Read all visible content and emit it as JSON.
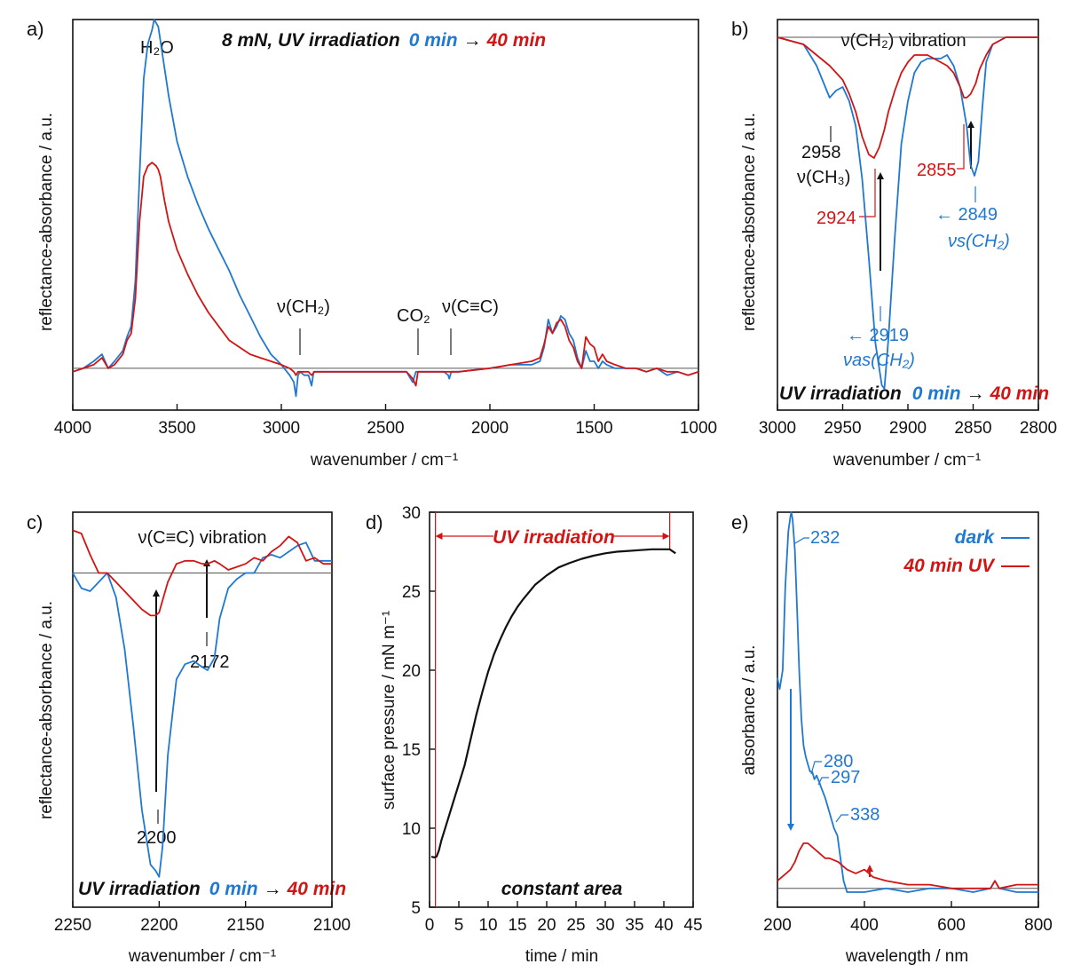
{
  "colors": {
    "blue": "#1f78d1",
    "red": "#d21414",
    "black": "#111111"
  },
  "panels": {
    "a": {
      "label": "a)",
      "xlabel": "wavenumber / cm⁻¹",
      "ylabel": "reflectance-absorbance / a.u.",
      "title_prefix": "8 mN, UV irradiation",
      "t0": "0 min",
      "arrow": "→",
      "t1": "40 min",
      "annotations": {
        "h2o": "H₂O",
        "ch2": "ν(CH₂)",
        "co2": "CO₂",
        "cc": "ν(C≡C)"
      }
    },
    "b": {
      "label": "b)",
      "xlabel": "wavenumber / cm⁻¹",
      "ylabel": "reflectance-absorbance / a.u.",
      "title": "ν(CH₂) vibration",
      "uv_text": "UV irradiation",
      "t0": "0 min",
      "arrow": "→",
      "t1": "40 min",
      "peaks": {
        "p2958": "2958",
        "ch3": "ν(CH₃)",
        "p2924": "2924",
        "p2855": "2855",
        "p2849": "← 2849",
        "vs": "νs(CH₂)",
        "p2919": "← 2919",
        "vas": "νas(CH₂)"
      }
    },
    "c": {
      "label": "c)",
      "xlabel": "wavenumber / cm⁻¹",
      "ylabel": "reflectance-absorbance / a.u.",
      "title": "ν(C≡C) vibration",
      "uv_text": "UV irradiation",
      "t0": "0 min",
      "arrow": "→",
      "t1": "40 min",
      "peaks": {
        "p2172": "2172",
        "p2200": "2200"
      }
    },
    "d": {
      "label": "d)",
      "xlabel": "time / min",
      "ylabel": "surface pressure / mN m⁻¹",
      "uv_text": "UV irradiation",
      "bottom_text": "constant area"
    },
    "e": {
      "label": "e)",
      "xlabel": "wavelength / nm",
      "ylabel": "absorbance / a.u.",
      "legend_dark": "dark",
      "legend_uv": "40 min UV",
      "peaks": {
        "p232": "232",
        "p280": "280",
        "p297": "297",
        "p338": "338"
      }
    }
  },
  "chart_data": [
    {
      "panel": "a",
      "type": "line",
      "xlim": [
        4000,
        1000
      ],
      "ylim": [
        -0.12,
        1.0
      ],
      "xticks": [
        4000,
        3500,
        3000,
        2500,
        2000,
        1500,
        1000
      ],
      "series": [
        {
          "name": "0 min",
          "color": "#1f78d1",
          "x": [
            4000,
            3950,
            3900,
            3860,
            3830,
            3800,
            3760,
            3740,
            3720,
            3700,
            3680,
            3660,
            3640,
            3620,
            3610,
            3600,
            3590,
            3580,
            3560,
            3540,
            3500,
            3450,
            3400,
            3350,
            3300,
            3250,
            3200,
            3150,
            3100,
            3050,
            3000,
            2960,
            2940,
            2930,
            2920,
            2910,
            2890,
            2870,
            2855,
            2845,
            2830,
            2800,
            2500,
            2400,
            2370,
            2355,
            2345,
            2330,
            2300,
            2220,
            2200,
            2195,
            2185,
            2150,
            2000,
            1900,
            1800,
            1760,
            1740,
            1720,
            1700,
            1680,
            1660,
            1640,
            1620,
            1600,
            1580,
            1560,
            1540,
            1520,
            1500,
            1480,
            1460,
            1440,
            1400,
            1350,
            1300,
            1250,
            1200,
            1150,
            1100,
            1050,
            1000
          ],
          "y": [
            -0.01,
            0.0,
            0.02,
            0.04,
            0.0,
            0.02,
            0.05,
            0.09,
            0.12,
            0.25,
            0.55,
            0.83,
            0.93,
            0.97,
            1.0,
            0.99,
            0.98,
            0.94,
            0.86,
            0.78,
            0.65,
            0.55,
            0.47,
            0.4,
            0.34,
            0.28,
            0.21,
            0.15,
            0.09,
            0.04,
            0.01,
            -0.02,
            -0.04,
            -0.08,
            -0.02,
            -0.01,
            -0.02,
            -0.02,
            -0.05,
            -0.01,
            -0.01,
            -0.01,
            -0.01,
            -0.01,
            -0.04,
            -0.01,
            -0.01,
            -0.01,
            -0.01,
            -0.01,
            -0.02,
            -0.03,
            -0.01,
            -0.01,
            0.0,
            0.01,
            0.01,
            0.02,
            0.06,
            0.14,
            0.1,
            0.12,
            0.15,
            0.14,
            0.1,
            0.08,
            0.03,
            0.0,
            0.05,
            0.02,
            0.02,
            0.0,
            0.02,
            0.01,
            0.0,
            0.0,
            0.0,
            -0.01,
            0.0,
            -0.02,
            -0.01,
            -0.02,
            -0.01
          ]
        },
        {
          "name": "40 min",
          "color": "#d21414",
          "x": [
            4000,
            3950,
            3900,
            3860,
            3830,
            3800,
            3760,
            3740,
            3720,
            3700,
            3680,
            3660,
            3640,
            3620,
            3600,
            3590,
            3580,
            3560,
            3540,
            3500,
            3450,
            3400,
            3350,
            3300,
            3250,
            3200,
            3150,
            3100,
            3050,
            3000,
            2960,
            2940,
            2930,
            2920,
            2900,
            2870,
            2855,
            2840,
            2800,
            2500,
            2400,
            2370,
            2355,
            2345,
            2330,
            2300,
            2220,
            2200,
            2190,
            2150,
            2000,
            1900,
            1800,
            1760,
            1740,
            1720,
            1700,
            1680,
            1660,
            1640,
            1620,
            1600,
            1580,
            1560,
            1540,
            1520,
            1500,
            1480,
            1460,
            1440,
            1400,
            1350,
            1300,
            1250,
            1200,
            1150,
            1100,
            1050,
            1000
          ],
          "y": [
            -0.01,
            0.0,
            0.01,
            0.03,
            0.0,
            0.01,
            0.04,
            0.08,
            0.1,
            0.2,
            0.42,
            0.55,
            0.58,
            0.59,
            0.58,
            0.57,
            0.55,
            0.48,
            0.42,
            0.34,
            0.27,
            0.21,
            0.16,
            0.12,
            0.08,
            0.06,
            0.04,
            0.03,
            0.02,
            0.01,
            0.0,
            -0.01,
            -0.02,
            -0.01,
            -0.01,
            -0.01,
            -0.02,
            -0.01,
            -0.01,
            -0.01,
            -0.01,
            -0.03,
            -0.05,
            -0.01,
            -0.01,
            -0.01,
            -0.01,
            -0.01,
            -0.01,
            -0.01,
            0.0,
            0.01,
            0.02,
            0.03,
            0.07,
            0.12,
            0.1,
            0.13,
            0.14,
            0.12,
            0.08,
            0.06,
            0.02,
            0.0,
            0.09,
            0.07,
            0.06,
            0.02,
            0.04,
            0.02,
            0.01,
            0.0,
            0.0,
            -0.01,
            0.0,
            -0.01,
            -0.01,
            -0.02,
            -0.01
          ]
        }
      ]
    },
    {
      "panel": "b",
      "type": "line",
      "xlim": [
        3000,
        2800
      ],
      "ylim": [
        -1.05,
        0.05
      ],
      "xticks": [
        3000,
        2950,
        2900,
        2850,
        2800
      ],
      "series": [
        {
          "name": "0 min",
          "color": "#1f78d1",
          "x": [
            3000,
            2990,
            2980,
            2970,
            2960,
            2955,
            2950,
            2945,
            2940,
            2935,
            2930,
            2925,
            2920,
            2918,
            2915,
            2910,
            2905,
            2900,
            2895,
            2890,
            2885,
            2880,
            2875,
            2870,
            2865,
            2860,
            2855,
            2852,
            2849,
            2846,
            2843,
            2840,
            2835,
            2830,
            2825,
            2820,
            2810,
            2800
          ],
          "y": [
            0.0,
            -0.01,
            -0.02,
            -0.08,
            -0.17,
            -0.15,
            -0.14,
            -0.18,
            -0.25,
            -0.4,
            -0.62,
            -0.86,
            -0.98,
            -0.99,
            -0.85,
            -0.56,
            -0.3,
            -0.18,
            -0.1,
            -0.07,
            -0.06,
            -0.06,
            -0.06,
            -0.05,
            -0.08,
            -0.14,
            -0.25,
            -0.36,
            -0.39,
            -0.35,
            -0.2,
            -0.07,
            -0.02,
            -0.01,
            0.0,
            0.0,
            0.0,
            0.0
          ]
        },
        {
          "name": "40 min",
          "color": "#d21414",
          "x": [
            3000,
            2990,
            2980,
            2970,
            2960,
            2950,
            2945,
            2940,
            2935,
            2930,
            2926,
            2922,
            2918,
            2915,
            2910,
            2905,
            2900,
            2895,
            2890,
            2885,
            2880,
            2875,
            2870,
            2865,
            2860,
            2857,
            2855,
            2852,
            2848,
            2845,
            2840,
            2835,
            2830,
            2825,
            2820,
            2810,
            2800
          ],
          "y": [
            0.0,
            -0.01,
            -0.02,
            -0.05,
            -0.08,
            -0.12,
            -0.16,
            -0.21,
            -0.28,
            -0.33,
            -0.34,
            -0.31,
            -0.26,
            -0.21,
            -0.15,
            -0.1,
            -0.07,
            -0.05,
            -0.05,
            -0.05,
            -0.06,
            -0.07,
            -0.08,
            -0.1,
            -0.14,
            -0.17,
            -0.17,
            -0.16,
            -0.13,
            -0.09,
            -0.05,
            -0.02,
            -0.01,
            0.0,
            0.0,
            0.0,
            0.0
          ]
        }
      ]
    },
    {
      "panel": "c",
      "type": "line",
      "xlim": [
        2250,
        2100
      ],
      "ylim": [
        -1.1,
        0.2
      ],
      "xticks": [
        2250,
        2200,
        2150,
        2100
      ],
      "series": [
        {
          "name": "0 min",
          "color": "#1f78d1",
          "x": [
            2250,
            2245,
            2240,
            2235,
            2230,
            2225,
            2220,
            2215,
            2210,
            2205,
            2202,
            2200,
            2198,
            2195,
            2190,
            2185,
            2180,
            2175,
            2172,
            2168,
            2165,
            2160,
            2155,
            2150,
            2145,
            2140,
            2135,
            2130,
            2125,
            2120,
            2115,
            2110,
            2105,
            2100
          ],
          "y": [
            0.0,
            -0.05,
            -0.06,
            -0.03,
            0.0,
            -0.08,
            -0.25,
            -0.5,
            -0.78,
            -0.96,
            -0.98,
            -1.0,
            -0.9,
            -0.6,
            -0.35,
            -0.3,
            -0.29,
            -0.31,
            -0.32,
            -0.28,
            -0.15,
            -0.05,
            -0.02,
            0.0,
            0.0,
            0.05,
            0.06,
            0.05,
            0.07,
            0.09,
            0.1,
            0.04,
            0.04,
            0.04
          ]
        },
        {
          "name": "40 min",
          "color": "#d21414",
          "x": [
            2250,
            2245,
            2240,
            2235,
            2230,
            2225,
            2220,
            2215,
            2210,
            2205,
            2202,
            2200,
            2198,
            2195,
            2190,
            2185,
            2180,
            2175,
            2172,
            2168,
            2165,
            2160,
            2155,
            2150,
            2145,
            2140,
            2135,
            2130,
            2125,
            2120,
            2115,
            2110,
            2105,
            2100
          ],
          "y": [
            0.14,
            0.13,
            0.06,
            0.0,
            0.0,
            -0.03,
            -0.06,
            -0.09,
            -0.12,
            -0.14,
            -0.14,
            -0.13,
            -0.09,
            -0.03,
            0.03,
            0.04,
            0.04,
            0.03,
            0.03,
            0.04,
            0.03,
            0.01,
            0.02,
            0.03,
            0.05,
            0.04,
            0.07,
            0.09,
            0.12,
            0.1,
            0.04,
            0.05,
            0.03,
            0.03
          ]
        }
      ]
    },
    {
      "panel": "d",
      "type": "line",
      "xlim": [
        0,
        45
      ],
      "ylim": [
        5,
        30
      ],
      "xticks": [
        0,
        5,
        10,
        15,
        20,
        25,
        30,
        35,
        40,
        45
      ],
      "yticks": [
        5,
        10,
        15,
        20,
        25,
        30
      ],
      "uv_start": 1,
      "uv_end": 41,
      "series": [
        {
          "name": "surface pressure",
          "color": "#111111",
          "x": [
            0.3,
            0.8,
            1.2,
            1.6,
            2,
            3,
            4,
            5,
            6,
            7,
            8,
            9,
            10,
            11,
            12,
            13,
            14,
            15,
            16,
            18,
            20,
            22,
            24,
            26,
            28,
            30,
            32,
            34,
            36,
            38,
            40,
            41,
            42
          ],
          "y": [
            8.2,
            8.15,
            8.2,
            8.6,
            9.2,
            10.4,
            11.6,
            12.8,
            14.0,
            15.6,
            17.2,
            18.6,
            19.9,
            21.0,
            21.9,
            22.7,
            23.4,
            24.0,
            24.5,
            25.4,
            26.0,
            26.5,
            26.8,
            27.05,
            27.25,
            27.4,
            27.5,
            27.55,
            27.6,
            27.65,
            27.65,
            27.65,
            27.4
          ]
        }
      ]
    },
    {
      "panel": "e",
      "type": "line",
      "xlim": [
        200,
        800
      ],
      "ylim": [
        -0.05,
        1.0
      ],
      "xticks": [
        200,
        400,
        600,
        800
      ],
      "series": [
        {
          "name": "dark",
          "color": "#1f78d1",
          "x": [
            200,
            205,
            212,
            218,
            225,
            230,
            232,
            235,
            240,
            245,
            250,
            255,
            260,
            265,
            270,
            275,
            280,
            285,
            290,
            297,
            300,
            310,
            320,
            330,
            338,
            345,
            352,
            360,
            370,
            380,
            400,
            450,
            500,
            550,
            600,
            650,
            690,
            700,
            710,
            750,
            800
          ],
          "y": [
            0.56,
            0.53,
            0.58,
            0.8,
            0.95,
            0.99,
            1.0,
            0.98,
            0.9,
            0.75,
            0.58,
            0.45,
            0.38,
            0.35,
            0.33,
            0.31,
            0.31,
            0.29,
            0.3,
            0.28,
            0.27,
            0.24,
            0.2,
            0.16,
            0.14,
            0.08,
            0.02,
            -0.01,
            -0.01,
            -0.01,
            -0.01,
            0.0,
            -0.01,
            0.0,
            0.0,
            -0.01,
            0.0,
            0.02,
            0.0,
            -0.01,
            -0.01
          ]
        },
        {
          "name": "40 min UV",
          "color": "#d21414",
          "x": [
            200,
            210,
            220,
            230,
            240,
            250,
            260,
            265,
            270,
            280,
            290,
            300,
            310,
            320,
            340,
            350,
            360,
            380,
            400,
            420,
            450,
            500,
            550,
            600,
            650,
            690,
            700,
            710,
            750,
            800
          ],
          "y": [
            0.02,
            0.03,
            0.04,
            0.05,
            0.07,
            0.1,
            0.12,
            0.12,
            0.12,
            0.11,
            0.1,
            0.09,
            0.08,
            0.08,
            0.07,
            0.06,
            0.05,
            0.04,
            0.05,
            0.03,
            0.02,
            0.01,
            0.01,
            0.0,
            0.0,
            0.0,
            0.02,
            0.0,
            0.01,
            0.01
          ]
        }
      ]
    }
  ]
}
